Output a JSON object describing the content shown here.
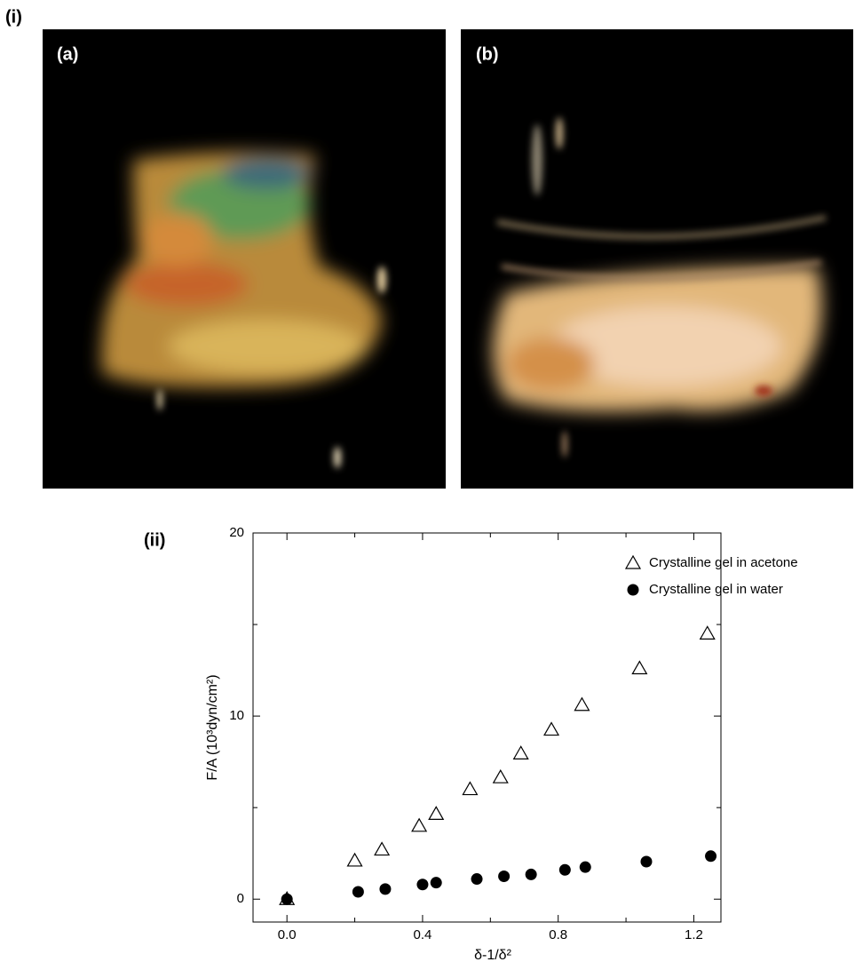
{
  "panel_labels": {
    "i": "(i)",
    "a": "(a)",
    "b": "(b)",
    "ii": "(ii)"
  },
  "chart_data": {
    "type": "scatter",
    "xlabel": "δ-1/δ²",
    "ylabel": "F/A (10³dyn/cm²)",
    "xlim": [
      -0.1,
      1.28
    ],
    "ylim": [
      -1.25,
      20
    ],
    "xticks": [
      {
        "value": 0,
        "label": "0.0"
      },
      0.4,
      0.8,
      1.2
    ],
    "yticks": [
      0,
      10,
      20
    ],
    "legend": "upper right",
    "series": [
      {
        "name": "Crystalline gel in acetone",
        "color": "#000000",
        "marker": "open-triangle",
        "x": [
          0,
          0.2,
          0.28,
          0.39,
          0.44,
          0.54,
          0.63,
          0.69,
          0.78,
          0.87,
          1.04,
          1.24
        ],
        "values": [
          0,
          2.1,
          2.7,
          4.0,
          4.65,
          6.0,
          6.65,
          7.95,
          9.25,
          10.6,
          12.6,
          14.5
        ]
      },
      {
        "name": "Crystalline gel in water",
        "color": "#000000",
        "marker": "filled-circle",
        "x": [
          0,
          0.21,
          0.29,
          0.4,
          0.44,
          0.56,
          0.64,
          0.72,
          0.82,
          0.88,
          1.06,
          1.25
        ],
        "values": [
          0,
          0.4,
          0.55,
          0.8,
          0.9,
          1.1,
          1.25,
          1.35,
          1.6,
          1.75,
          2.05,
          2.35
        ]
      }
    ]
  }
}
